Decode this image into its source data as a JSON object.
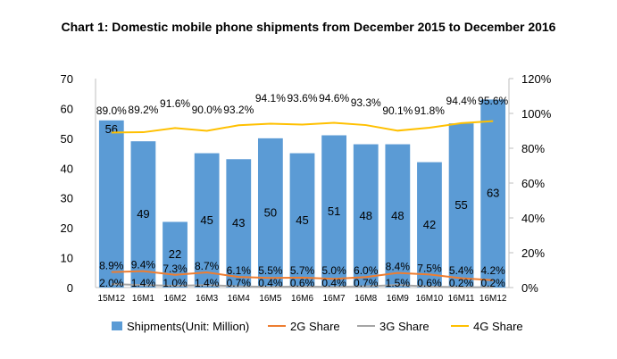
{
  "chart_data": {
    "type": "bar",
    "title": "Chart 1: Domestic mobile phone shipments from December 2015 to December 2016",
    "categories": [
      "15M12",
      "16M1",
      "16M2",
      "16M3",
      "16M4",
      "16M5",
      "16M6",
      "16M7",
      "16M8",
      "16M9",
      "16M10",
      "16M11",
      "16M12"
    ],
    "series": [
      {
        "name": "Shipments(Unit: Million)",
        "type": "bar",
        "axis": "left",
        "color": "#5b9bd5",
        "values": [
          56,
          49,
          22,
          45,
          43,
          50,
          45,
          51,
          48,
          48,
          42,
          55,
          63
        ]
      },
      {
        "name": "2G Share",
        "type": "line",
        "axis": "right",
        "color": "#ed7d31",
        "values": [
          8.9,
          9.4,
          7.3,
          8.7,
          6.1,
          5.5,
          5.7,
          5.0,
          6.0,
          8.4,
          7.5,
          5.4,
          4.2
        ]
      },
      {
        "name": "3G Share",
        "type": "line",
        "axis": "right",
        "color": "#a5a5a5",
        "values": [
          2.0,
          1.4,
          1.0,
          1.4,
          0.7,
          0.4,
          0.6,
          0.4,
          0.7,
          1.5,
          0.6,
          0.2,
          0.2
        ]
      },
      {
        "name": "4G Share",
        "type": "line",
        "axis": "right",
        "color": "#ffc000",
        "values": [
          89.0,
          89.2,
          91.6,
          90.0,
          93.2,
          94.1,
          93.6,
          94.6,
          93.3,
          90.1,
          91.8,
          94.4,
          95.6
        ]
      }
    ],
    "ylim": [
      0,
      70
    ],
    "yticks": [
      0,
      10,
      20,
      30,
      40,
      50,
      60,
      70
    ],
    "y2lim": [
      0,
      120
    ],
    "y2ticks": [
      "0%",
      "20%",
      "40%",
      "60%",
      "80%",
      "100%",
      "120%"
    ],
    "grid": false,
    "legend": "bottom"
  }
}
